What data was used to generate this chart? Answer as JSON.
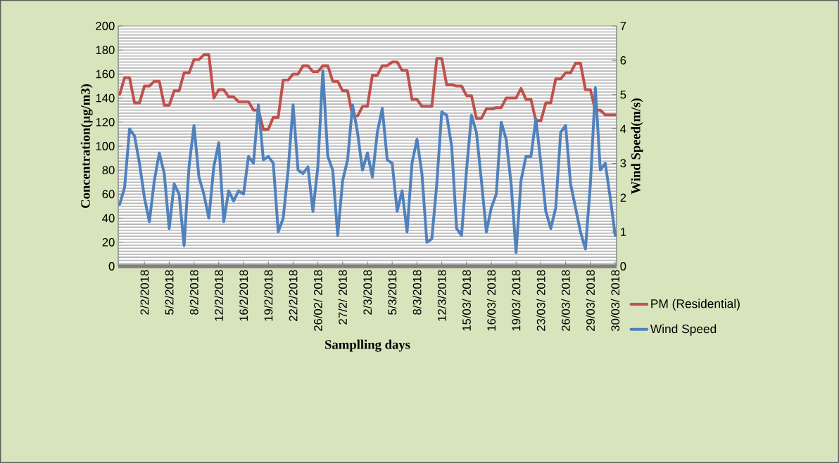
{
  "chart_data": {
    "type": "line",
    "xlabel": "Samplling days",
    "ylabel": "Concentration(µg/m3)",
    "y2label": "Wind Speed(m/s)",
    "categories": [
      null,
      null,
      null,
      null,
      null,
      "2/2/2018",
      null,
      null,
      null,
      null,
      "5/2/2018",
      null,
      null,
      null,
      null,
      "8/2/2018",
      null,
      null,
      null,
      null,
      "12/2/2018",
      null,
      null,
      null,
      null,
      "16/2/2018",
      null,
      null,
      null,
      null,
      "19/2/2018",
      null,
      null,
      null,
      null,
      "22/2/2018",
      null,
      null,
      null,
      null,
      "26/02/ 2018",
      null,
      null,
      null,
      null,
      "27/2/ 2018",
      null,
      null,
      null,
      null,
      "2/3/2018",
      null,
      null,
      null,
      null,
      "5/3/2018",
      null,
      null,
      null,
      null,
      "8/3/2018",
      null,
      null,
      null,
      null,
      "12/3/2018",
      null,
      null,
      null,
      null,
      "15/03/ 2018",
      null,
      null,
      null,
      null,
      "16/03/ 2018",
      null,
      null,
      null,
      null,
      "19/03/ 2018",
      null,
      null,
      null,
      null,
      "23/03/ 2018",
      null,
      null,
      null,
      null,
      "26/03/ 2018",
      null,
      null,
      null,
      null,
      "29/03/ 2018",
      null,
      null,
      null,
      null,
      "30/03/ 2018"
    ],
    "series": [
      {
        "name": "PM (Residential)",
        "color": "#c0504d",
        "values": [
          143,
          157,
          157,
          136,
          136,
          150,
          150,
          154,
          154,
          134,
          134,
          146,
          146,
          161,
          161,
          172,
          172,
          176,
          176,
          140,
          147,
          147,
          141,
          141,
          137,
          137,
          137,
          130,
          130,
          114,
          114,
          124,
          124,
          155,
          155,
          160,
          160,
          167,
          167,
          162,
          162,
          167,
          167,
          154,
          154,
          146,
          146,
          125,
          125,
          133,
          133,
          159,
          159,
          167,
          167,
          170,
          170,
          163,
          163,
          139,
          139,
          133,
          133,
          133,
          173,
          173,
          151,
          151,
          150,
          150,
          142,
          142,
          123,
          123,
          131,
          131,
          132,
          132,
          140,
          140,
          140,
          148,
          139,
          139,
          121,
          121,
          136,
          136,
          156,
          156,
          161,
          161,
          169,
          169,
          147,
          147,
          130,
          130,
          126,
          126,
          126
        ]
      },
      {
        "name": "Wind Speed",
        "color": "#4f81bd",
        "axis": "y2",
        "values": [
          1.8,
          2.3,
          4.0,
          3.8,
          3.0,
          2.0,
          1.3,
          2.5,
          3.3,
          2.7,
          1.1,
          2.4,
          2.1,
          0.6,
          2.9,
          4.1,
          2.6,
          2.1,
          1.4,
          2.9,
          3.6,
          1.3,
          2.2,
          1.9,
          2.2,
          2.1,
          3.2,
          3.0,
          4.7,
          3.1,
          3.2,
          3.0,
          1.0,
          1.4,
          2.8,
          4.7,
          2.8,
          2.7,
          2.9,
          1.6,
          2.9,
          5.7,
          3.2,
          2.8,
          0.9,
          2.5,
          3.1,
          4.7,
          3.9,
          2.8,
          3.3,
          2.6,
          3.9,
          4.6,
          3.1,
          3.0,
          1.6,
          2.2,
          1.0,
          3.0,
          3.7,
          2.7,
          0.7,
          0.8,
          2.4,
          4.5,
          4.4,
          3.5,
          1.1,
          0.9,
          2.8,
          4.4,
          3.9,
          2.5,
          1.0,
          1.7,
          2.1,
          4.2,
          3.7,
          2.4,
          0.4,
          2.5,
          3.2,
          3.2,
          4.3,
          3.0,
          1.6,
          1.1,
          1.7,
          3.9,
          4.1,
          2.4,
          1.7,
          1.0,
          0.5,
          2.4,
          5.2,
          2.8,
          3.0,
          2.0,
          0.9
        ]
      }
    ],
    "ylim": [
      0,
      200
    ],
    "yticks": [
      0,
      20,
      40,
      60,
      80,
      100,
      120,
      140,
      160,
      180,
      200
    ],
    "y2lim": [
      0,
      7
    ],
    "y2ticks": [
      0,
      1,
      2,
      3,
      4,
      5,
      6,
      7
    ],
    "grid": "y",
    "legend": "right",
    "marker": "none"
  }
}
